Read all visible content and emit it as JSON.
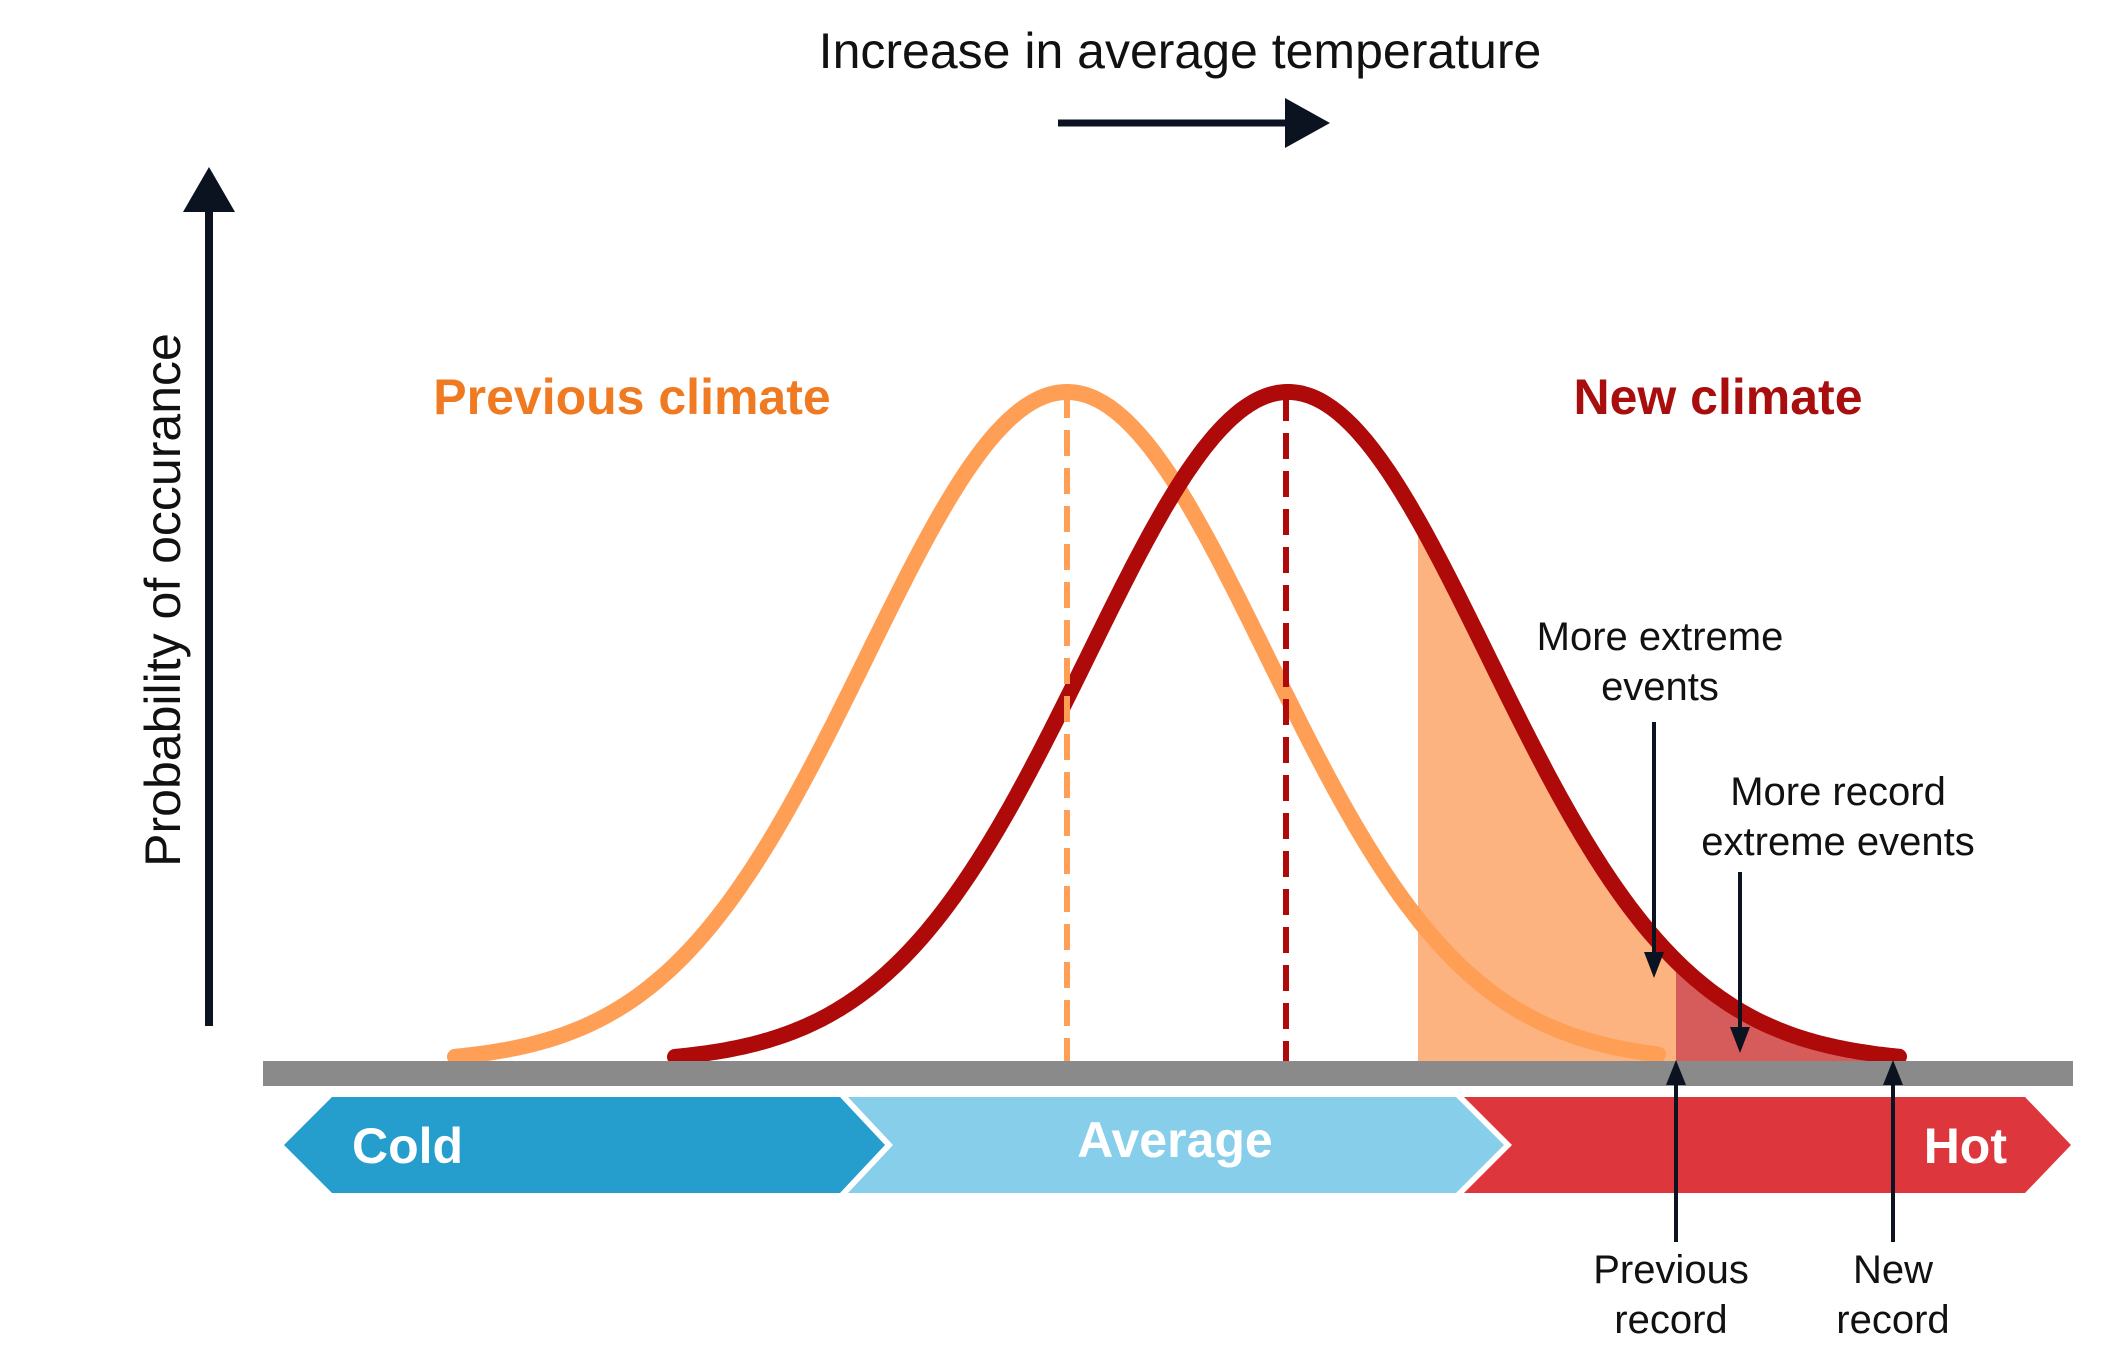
{
  "header": {
    "title": "Increase in average temperature"
  },
  "axis": {
    "y_label": "Probability of occurance"
  },
  "curves": {
    "previous": {
      "label": "Previous climate",
      "color": "#FF9E55",
      "label_color": "#F07A22"
    },
    "new": {
      "label": "New climate",
      "color": "#AE0A0A",
      "label_color": "#A80E0E"
    }
  },
  "shading": {
    "extreme_fill": "#FDB380",
    "record_fill": "#D65C5C"
  },
  "annotations": {
    "more_extreme_line1": "More extreme",
    "more_extreme_line2": "events",
    "more_record_line1": "More record",
    "more_record_line2": "extreme events",
    "previous_record_line1": "Previous",
    "previous_record_line2": "record",
    "new_record_line1": "New",
    "new_record_line2": "record"
  },
  "temperature_bands": [
    {
      "label": "Cold",
      "color": "#259ECE"
    },
    {
      "label": "Average",
      "color": "#87CEEB"
    },
    {
      "label": "Hot",
      "color": "#DD363D"
    }
  ],
  "colors": {
    "baseline": "#8A8A8A",
    "arrow": "#0B1220",
    "text": "#111111"
  }
}
